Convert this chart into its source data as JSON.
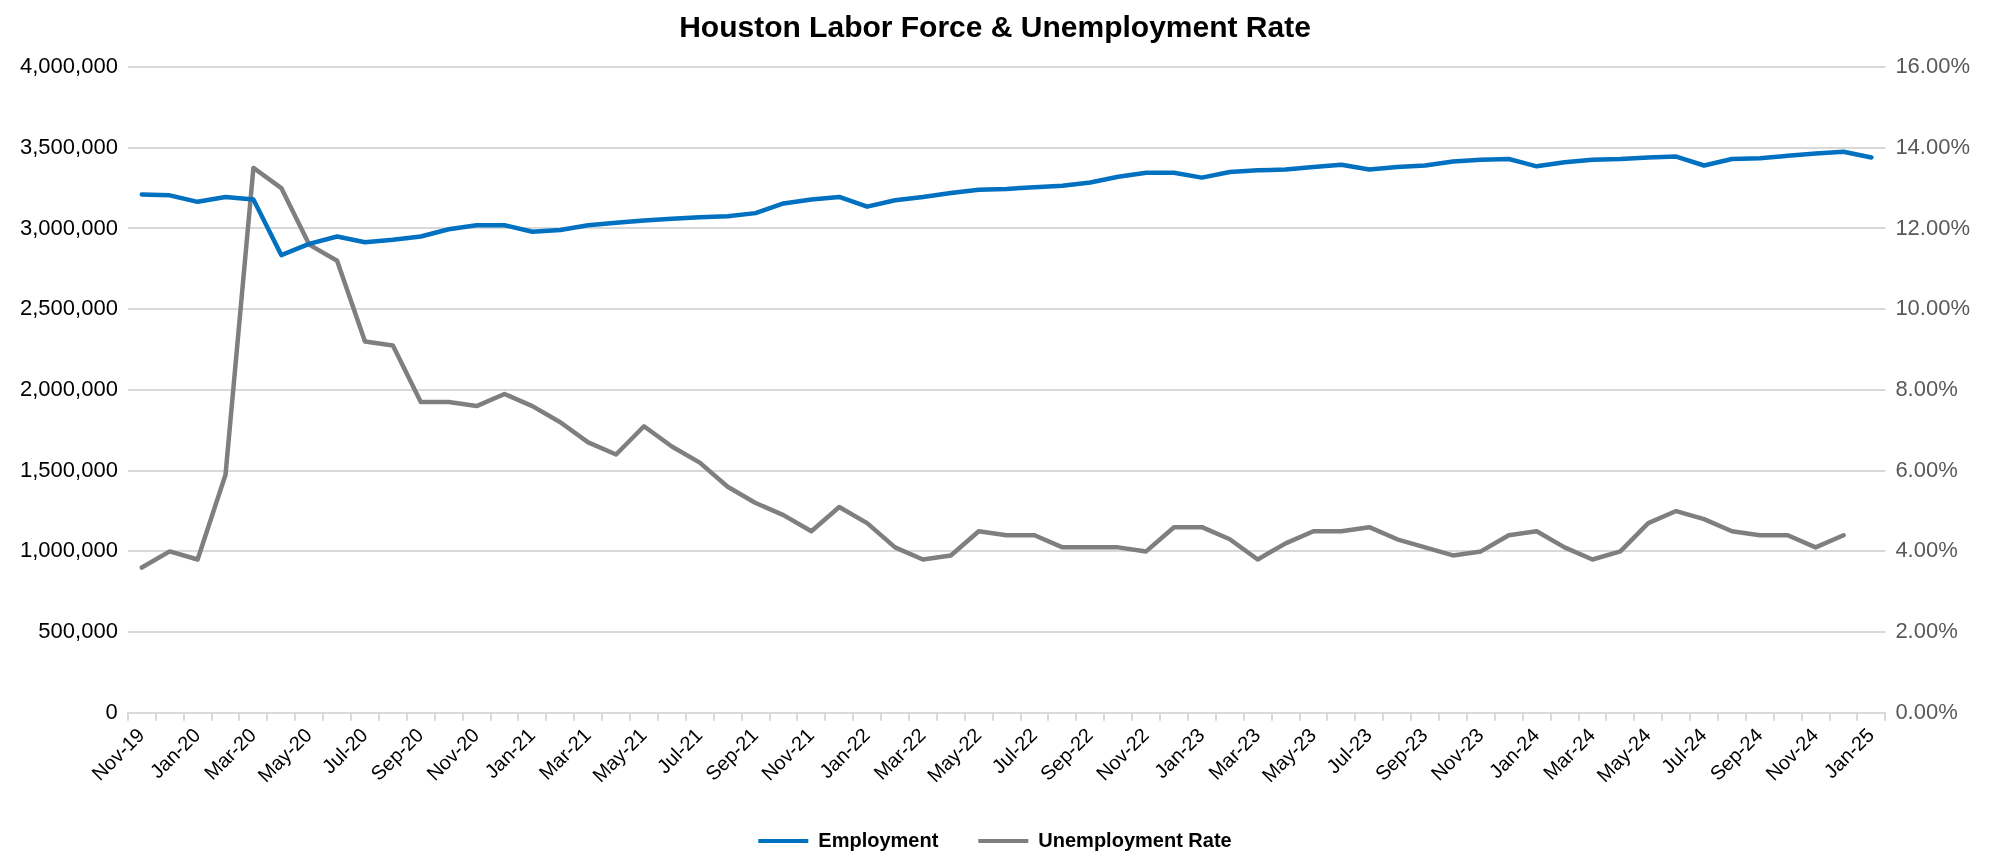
{
  "chart_data": {
    "type": "line",
    "title": "Houston Labor Force & Unemployment Rate",
    "categories": [
      "Nov-19",
      null,
      "Jan-20",
      null,
      "Mar-20",
      null,
      "May-20",
      null,
      "Jul-20",
      null,
      "Sep-20",
      null,
      "Nov-20",
      null,
      "Jan-21",
      null,
      "Mar-21",
      null,
      "May-21",
      null,
      "Jul-21",
      null,
      "Sep-21",
      null,
      "Nov-21",
      null,
      "Jan-22",
      null,
      "Mar-22",
      null,
      "May-22",
      null,
      "Jul-22",
      null,
      "Sep-22",
      null,
      "Nov-22",
      null,
      "Jan-23",
      null,
      "Mar-23",
      null,
      "May-23",
      null,
      "Jul-23",
      null,
      "Sep-23",
      null,
      "Nov-23",
      null,
      "Jan-24",
      null,
      "Mar-24",
      null,
      "May-24",
      null,
      "Jul-24",
      null,
      "Sep-24",
      null,
      "Nov-24",
      null,
      "Jan-25"
    ],
    "series": [
      {
        "name": "Employment",
        "color": "#0070c0",
        "values": [
          3210000,
          3205000,
          3165000,
          3195000,
          3180000,
          2835000,
          2905000,
          2950000,
          2915000,
          2930000,
          2950000,
          2995000,
          3020000,
          3020000,
          2980000,
          2990000,
          3020000,
          3035000,
          3050000,
          3060000,
          3070000,
          3075000,
          3095000,
          3155000,
          3180000,
          3195000,
          3135000,
          3175000,
          3195000,
          3220000,
          3240000,
          3245000,
          3255000,
          3265000,
          3285000,
          3320000,
          3345000,
          3345000,
          3315000,
          3350000,
          3360000,
          3365000,
          3380000,
          3395000,
          3365000,
          3380000,
          3390000,
          3415000,
          3425000,
          3430000,
          3385000,
          3410000,
          3425000,
          3430000,
          3440000,
          3445000,
          3390000,
          3430000,
          3435000,
          3450000,
          3465000,
          3475000,
          3440000
        ]
      },
      {
        "name": "Unemployment Rate",
        "color": "#7f7f7f",
        "axis": "y2",
        "values": [
          3.6,
          4.0,
          3.8,
          5.9,
          13.5,
          13.0,
          11.6,
          11.2,
          9.2,
          9.1,
          7.7,
          7.7,
          7.6,
          7.9,
          7.6,
          7.2,
          6.7,
          6.4,
          7.1,
          6.6,
          6.2,
          5.6,
          5.2,
          4.9,
          4.5,
          5.1,
          4.7,
          4.1,
          3.8,
          3.9,
          4.5,
          4.4,
          4.4,
          4.1,
          4.1,
          4.1,
          4.0,
          4.6,
          4.6,
          4.3,
          3.8,
          4.2,
          4.5,
          4.5,
          4.6,
          4.3,
          4.1,
          3.9,
          4.0,
          4.4,
          4.5,
          4.1,
          3.8,
          4.0,
          4.7,
          5.0,
          4.8,
          4.5,
          4.4,
          4.4,
          4.1,
          4.4,
          null
        ]
      }
    ],
    "ylim": [
      0,
      4000000
    ],
    "yticks": [
      {
        "value": 0,
        "label": "0"
      },
      {
        "value": 500000,
        "label": "500,000"
      },
      {
        "value": 1000000,
        "label": "1,000,000"
      },
      {
        "value": 1500000,
        "label": "1,500,000"
      },
      {
        "value": 2000000,
        "label": "2,000,000"
      },
      {
        "value": 2500000,
        "label": "2,500,000"
      },
      {
        "value": 3000000,
        "label": "3,000,000"
      },
      {
        "value": 3500000,
        "label": "3,500,000"
      },
      {
        "value": 4000000,
        "label": "4,000,000"
      }
    ],
    "y2lim": [
      0,
      16
    ],
    "y2ticks": [
      {
        "value": 0,
        "label": "0.00%"
      },
      {
        "value": 2,
        "label": "2.00%"
      },
      {
        "value": 4,
        "label": "4.00%"
      },
      {
        "value": 6,
        "label": "6.00%"
      },
      {
        "value": 8,
        "label": "8.00%"
      },
      {
        "value": 10,
        "label": "10.00%"
      },
      {
        "value": 12,
        "label": "12.00%"
      },
      {
        "value": 14,
        "label": "14.00%"
      },
      {
        "value": 16,
        "label": "16.00%"
      }
    ],
    "grid": "y",
    "legend": "bottom",
    "marker": "none",
    "line_style": "solid"
  }
}
